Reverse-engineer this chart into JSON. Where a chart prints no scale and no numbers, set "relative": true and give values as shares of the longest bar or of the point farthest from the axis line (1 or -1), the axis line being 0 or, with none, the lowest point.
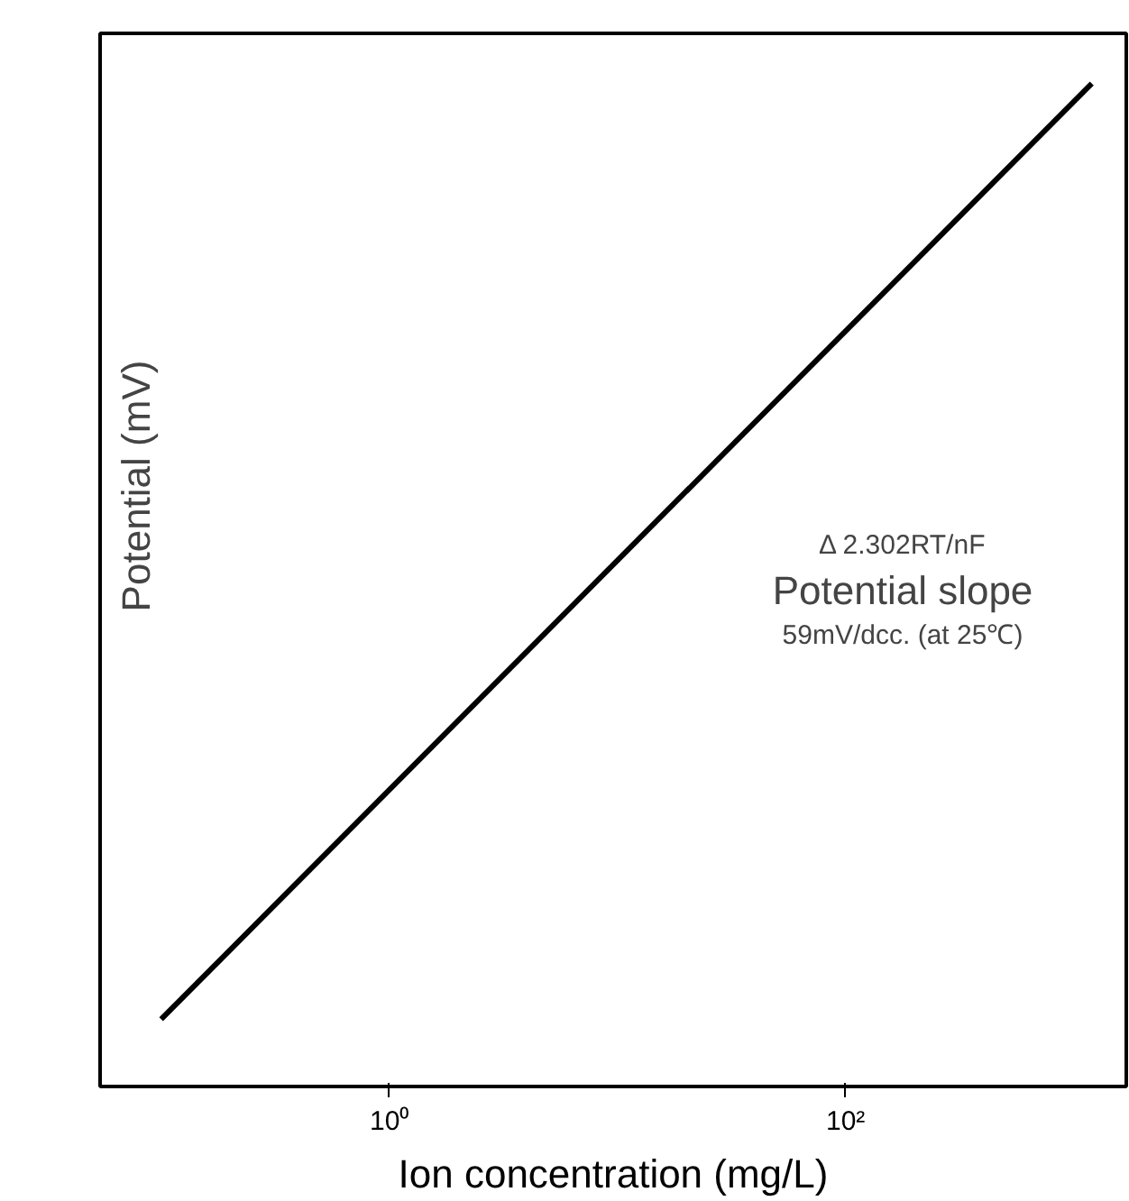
{
  "chart_data": {
    "type": "line",
    "xlabel": "Ion concentration (mg/L)",
    "ylabel": "Potential (mV)",
    "log": "x",
    "relative": true,
    "x": [
      0.1,
      1200
    ],
    "values": [
      0.067,
      1
    ],
    "color": "#000000",
    "xlim": [
      0.054,
      1700
    ],
    "xticks": [
      {
        "value": 1,
        "label": "10⁰"
      },
      {
        "value": 100,
        "label": "10²"
      }
    ],
    "tick_labels": "x",
    "grid": false,
    "marker": "none",
    "line_style": "solid",
    "annotations": [
      "Δ 2.302RT/nF",
      "Potential slope",
      "59mV/dcc. (at 25℃)"
    ]
  }
}
